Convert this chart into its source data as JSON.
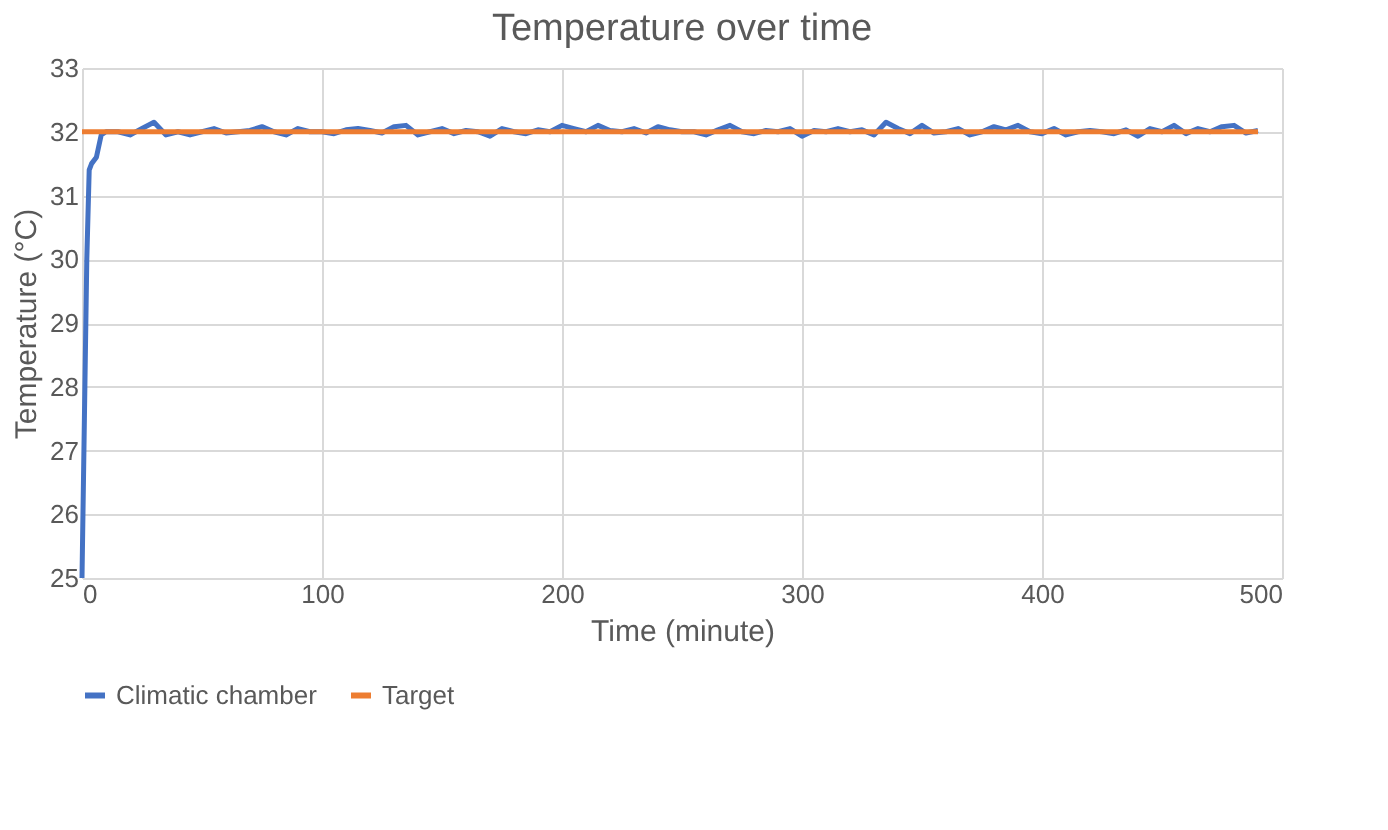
{
  "chart_data": {
    "type": "line",
    "title": "Temperature over time",
    "xlabel": "Time (minute)",
    "ylabel": "Temperature (°C)",
    "xlim": [
      0,
      500
    ],
    "xticks": [
      0,
      100,
      200,
      300,
      400,
      500
    ],
    "ylim": [
      25,
      33
    ],
    "yticks": [
      25,
      26,
      27,
      28,
      29,
      30,
      31,
      32,
      33
    ],
    "grid": true,
    "legend": "bottom",
    "marker": "none",
    "line_style": "solid",
    "series": [
      {
        "name": "Climatic chamber",
        "color": "#4472c4",
        "x": [
          0,
          1,
          2,
          3,
          4,
          6,
          8,
          10,
          15,
          20,
          25,
          30,
          35,
          40,
          45,
          50,
          55,
          60,
          65,
          70,
          75,
          80,
          85,
          90,
          95,
          100,
          105,
          110,
          115,
          120,
          125,
          130,
          135,
          140,
          145,
          150,
          155,
          160,
          165,
          170,
          175,
          180,
          185,
          190,
          195,
          200,
          205,
          210,
          215,
          220,
          225,
          230,
          235,
          240,
          245,
          250,
          255,
          260,
          265,
          270,
          275,
          280,
          285,
          290,
          295,
          300,
          305,
          310,
          315,
          320,
          325,
          330,
          335,
          340,
          345,
          350,
          355,
          360,
          365,
          370,
          375,
          380,
          385,
          390,
          395,
          400,
          405,
          410,
          415,
          420,
          425,
          430,
          435,
          440,
          445,
          450,
          455,
          460,
          465,
          470,
          475,
          480,
          485,
          490
        ],
        "values": [
          25,
          27.5,
          30,
          31.4,
          31.5,
          31.6,
          31.95,
          32.0,
          32.0,
          31.95,
          32.05,
          32.15,
          31.95,
          32.0,
          31.95,
          32.0,
          32.05,
          31.98,
          32.0,
          32.02,
          32.08,
          32.0,
          31.95,
          32.05,
          32.0,
          32.0,
          31.97,
          32.03,
          32.05,
          32.02,
          31.98,
          32.08,
          32.1,
          31.95,
          32.0,
          32.05,
          31.97,
          32.02,
          32.0,
          31.93,
          32.05,
          32.0,
          31.97,
          32.03,
          32.0,
          32.1,
          32.05,
          32.0,
          32.1,
          32.02,
          32.0,
          32.05,
          31.98,
          32.08,
          32.03,
          32.0,
          32.0,
          31.95,
          32.03,
          32.1,
          32.0,
          31.97,
          32.02,
          32.0,
          32.05,
          31.93,
          32.02,
          32.0,
          32.05,
          32.0,
          32.03,
          31.95,
          32.15,
          32.05,
          31.97,
          32.1,
          31.98,
          32.0,
          32.05,
          31.95,
          32.0,
          32.08,
          32.03,
          32.1,
          32.0,
          31.97,
          32.05,
          31.95,
          32.0,
          32.02,
          32.0,
          31.97,
          32.03,
          31.93,
          32.05,
          32.0,
          32.1,
          31.97,
          32.05,
          32.0,
          32.08,
          32.1,
          31.98,
          32.02
        ]
      },
      {
        "name": "Target",
        "color": "#ed7d31",
        "x": [
          0,
          490
        ],
        "values": [
          32,
          32
        ]
      }
    ]
  }
}
